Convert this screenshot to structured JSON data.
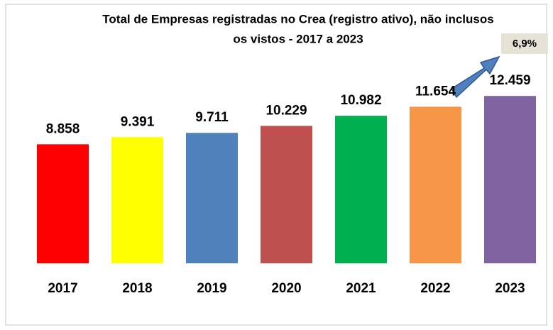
{
  "chart_data": {
    "type": "bar",
    "title": [
      "Total de Empresas registradas no Crea (registro ativo), não inclusos",
      "os vistos - 2017 a 2023"
    ],
    "categories": [
      "2017",
      "2018",
      "2019",
      "2020",
      "2021",
      "2022",
      "2023"
    ],
    "values": [
      8858,
      9391,
      9711,
      10229,
      10982,
      11654,
      12459
    ],
    "value_labels": [
      "8.858",
      "9.391",
      "9.711",
      "10.229",
      "10.982",
      "11.654",
      "12.459"
    ],
    "colors": [
      "#ff0000",
      "#ffff00",
      "#4f81bd",
      "#c0504d",
      "#00b050",
      "#f79646",
      "#8064a2"
    ],
    "ylim": [
      0,
      14000
    ],
    "annotation": "6,9%"
  }
}
